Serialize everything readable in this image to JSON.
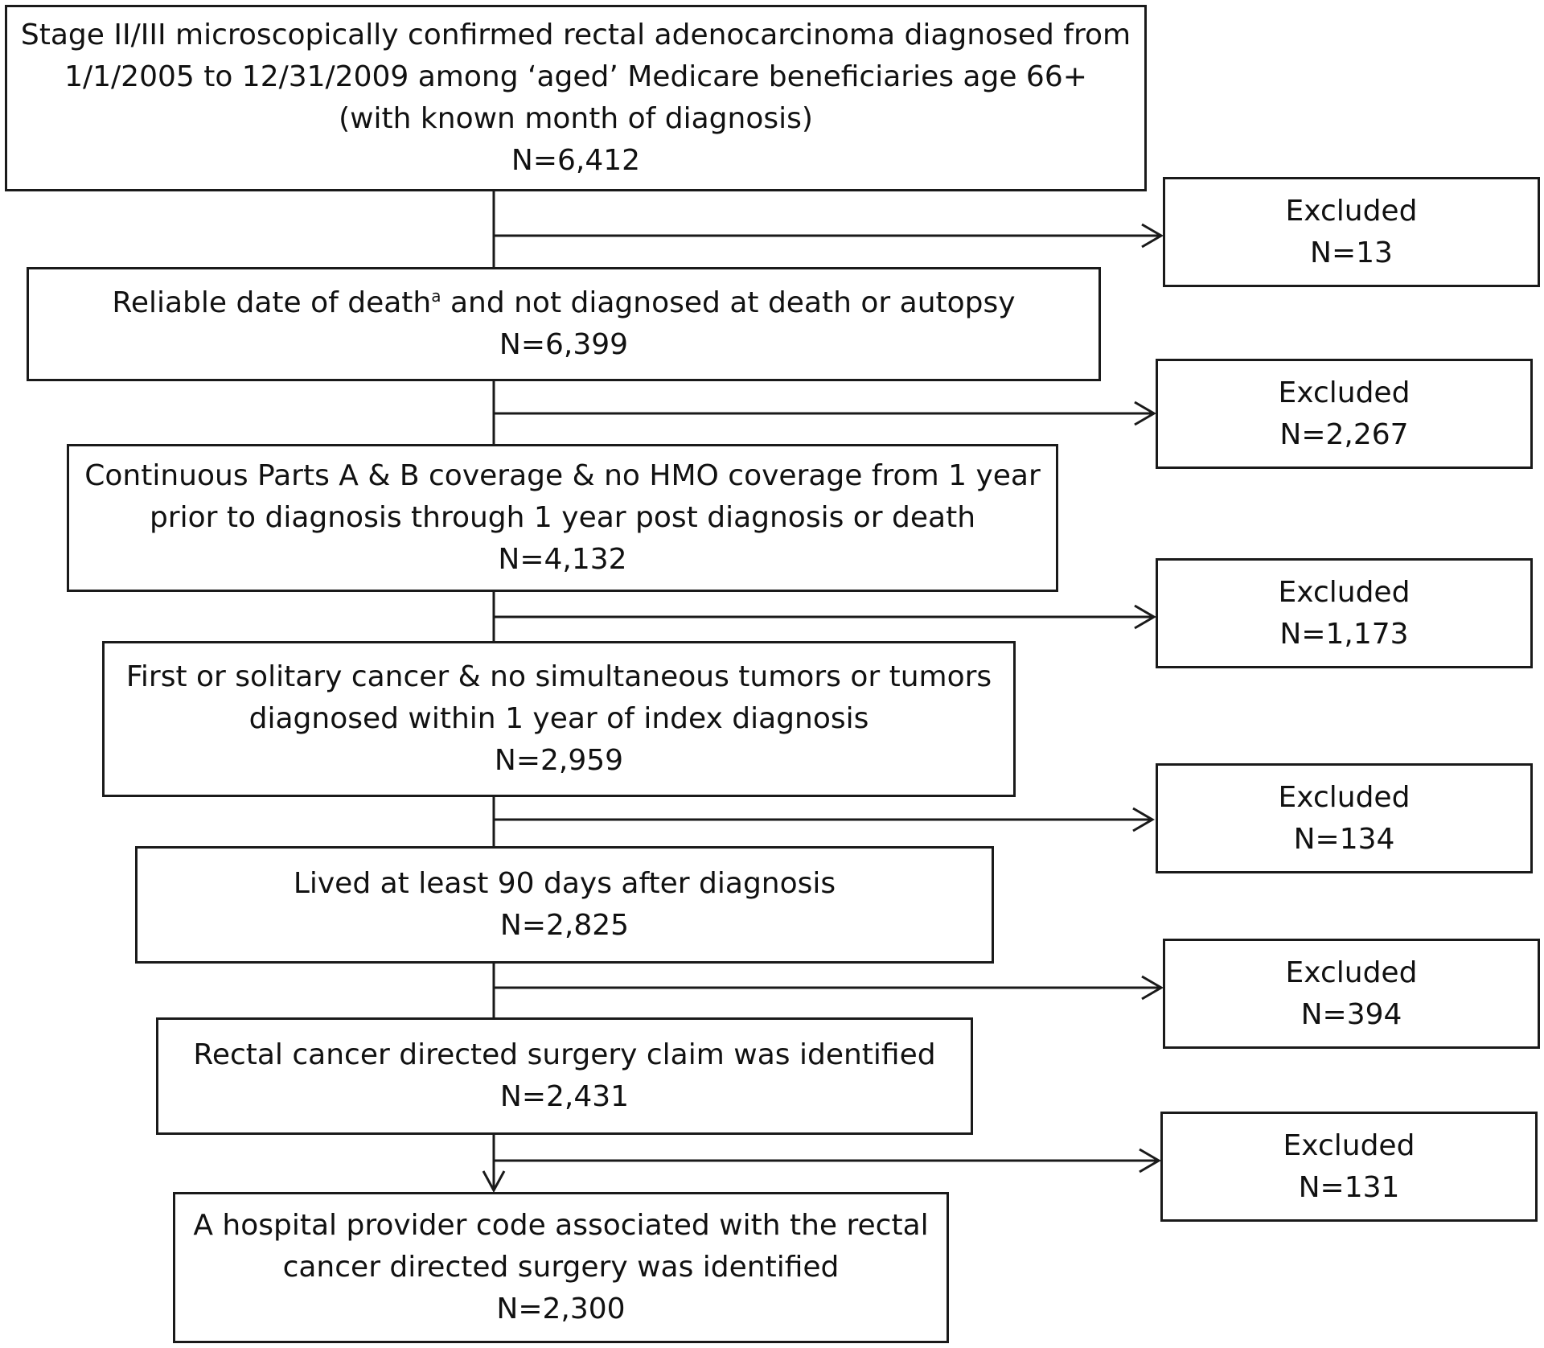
{
  "main_boxes": [
    {
      "lines": [
        "Stage II/III microscopically confirmed rectal adenocarcinoma diagnosed from",
        "1/1/2005 to 12/31/2009 among ‘aged’ Medicare beneficiaries age 66+",
        "(with known month of diagnosis)"
      ],
      "count": "N=6,412"
    },
    {
      "lines": [],
      "line_pre": "Reliable date of death",
      "line_sup": "a",
      "line_post": " and not diagnosed at death or autopsy",
      "count": "N=6,399"
    },
    {
      "lines": [
        "Continuous Parts A & B coverage & no HMO coverage from 1 year",
        "prior to diagnosis through 1 year post diagnosis or death"
      ],
      "count": "N=4,132"
    },
    {
      "lines": [
        "First or solitary cancer & no simultaneous tumors or tumors",
        "diagnosed within 1 year of index diagnosis"
      ],
      "count": "N=2,959"
    },
    {
      "lines": [
        "Lived at least 90 days after diagnosis"
      ],
      "count": "N=2,825"
    },
    {
      "lines": [
        "Rectal cancer directed surgery claim was identified"
      ],
      "count": "N=2,431"
    },
    {
      "lines": [
        "A hospital provider code associated with the rectal",
        "cancer directed surgery was identified"
      ],
      "count": "N=2,300"
    }
  ],
  "excluded_boxes": [
    {
      "label": "Excluded",
      "count": "N=13"
    },
    {
      "label": "Excluded",
      "count": "N=2,267"
    },
    {
      "label": "Excluded",
      "count": "N=1,173"
    },
    {
      "label": "Excluded",
      "count": "N=134"
    },
    {
      "label": "Excluded",
      "count": "N=394"
    },
    {
      "label": "Excluded",
      "count": "N=131"
    }
  ],
  "colors": {
    "stroke": "#1a1a1a",
    "background": "#ffffff"
  }
}
